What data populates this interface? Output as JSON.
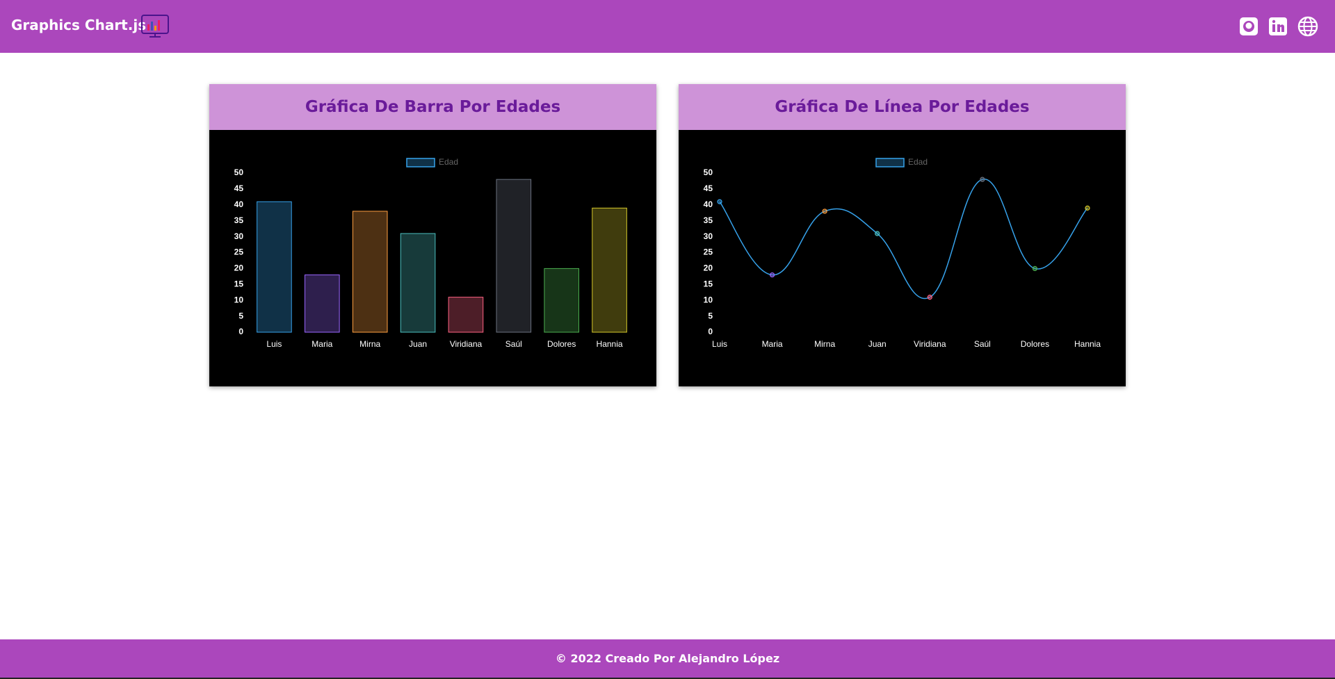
{
  "header": {
    "title": "Graphics Chart.js"
  },
  "chart_data": [
    {
      "type": "bar",
      "title": "Gráfica De Barra Por Edades",
      "categories": [
        "Luis",
        "Maria",
        "Mirna",
        "Juan",
        "Viridiana",
        "Saúl",
        "Dolores",
        "Hannia"
      ],
      "series": [
        {
          "name": "Edad",
          "color": "#36a2eb",
          "values": [
            41,
            18,
            38,
            31,
            11,
            48,
            20,
            39
          ]
        }
      ],
      "colors": [
        "#36a2eb",
        "#9966ff",
        "#ff9f40",
        "#4bc0c0",
        "#ff6384",
        "#6b7280",
        "#4caf50",
        "#d4c72a"
      ],
      "ylim": [
        0,
        50
      ],
      "yticks": [
        0,
        5,
        10,
        15,
        20,
        25,
        30,
        35,
        40,
        45,
        50
      ],
      "grid": false,
      "legend": "top"
    },
    {
      "type": "line",
      "title": "Gráfica De Línea Por Edades",
      "categories": [
        "Luis",
        "Maria",
        "Mirna",
        "Juan",
        "Viridiana",
        "Saúl",
        "Dolores",
        "Hannia"
      ],
      "series": [
        {
          "name": "Edad",
          "color": "#36a2eb",
          "values": [
            41,
            18,
            38,
            31,
            11,
            48,
            20,
            39
          ]
        }
      ],
      "point_colors": [
        "#36a2eb",
        "#9966ff",
        "#ff9f40",
        "#4bc0c0",
        "#ff6384",
        "#6b7280",
        "#4caf50",
        "#d4c72a"
      ],
      "ylim": [
        0,
        50
      ],
      "yticks": [
        0,
        5,
        10,
        15,
        20,
        25,
        30,
        35,
        40,
        45,
        50
      ],
      "grid": false,
      "legend": "top"
    }
  ],
  "footer": {
    "text": "© 2022 Creado Por Alejandro López"
  }
}
